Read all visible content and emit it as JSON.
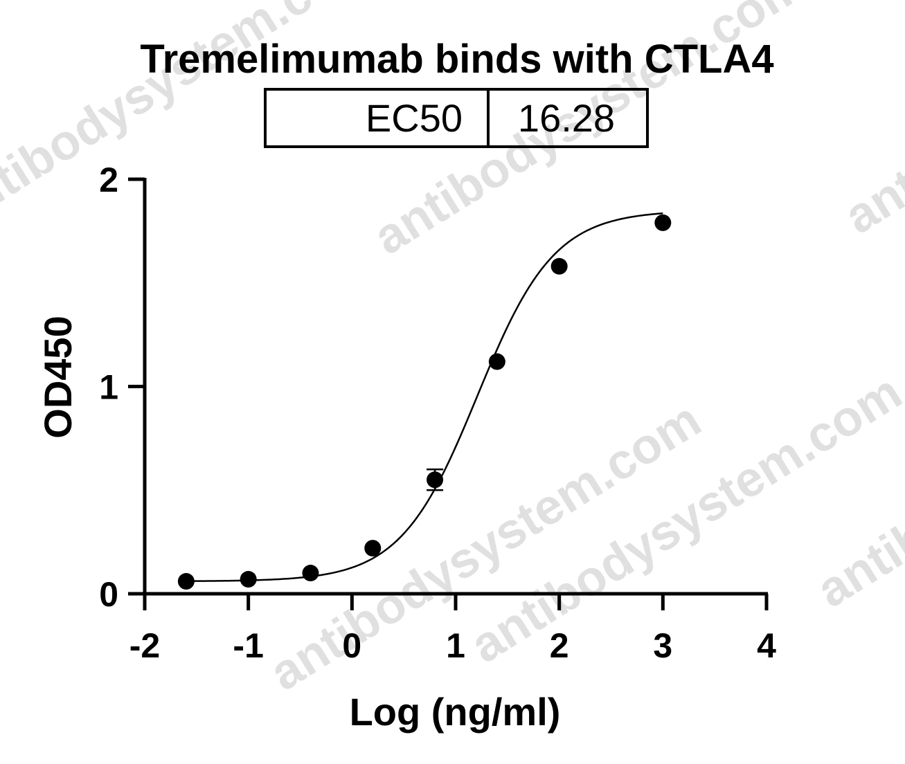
{
  "watermark": "antibodysystem.com",
  "chart_data": {
    "type": "scatter",
    "title": "Tremelimumab binds with CTLA4",
    "ec50_table": {
      "label": "EC50",
      "value": "16.28"
    },
    "xlabel": "Log (ng/ml)",
    "ylabel": "OD450",
    "xlim": [
      -2,
      4
    ],
    "ylim": [
      0,
      2
    ],
    "xticks": [
      "-2",
      "-1",
      "0",
      "1",
      "2",
      "3",
      "4"
    ],
    "yticks": [
      "0",
      "1",
      "2"
    ],
    "grid": false,
    "fit": "sigmoidal four-parameter curve",
    "series": [
      {
        "x": [
          -1.6,
          -1.0,
          -0.4,
          0.2,
          0.8,
          1.4,
          2.0,
          3.0
        ],
        "y": [
          0.06,
          0.07,
          0.1,
          0.22,
          0.55,
          1.12,
          1.58,
          1.79
        ],
        "error": [
          0,
          0,
          0,
          0,
          0.05,
          0,
          0,
          0
        ]
      }
    ]
  }
}
